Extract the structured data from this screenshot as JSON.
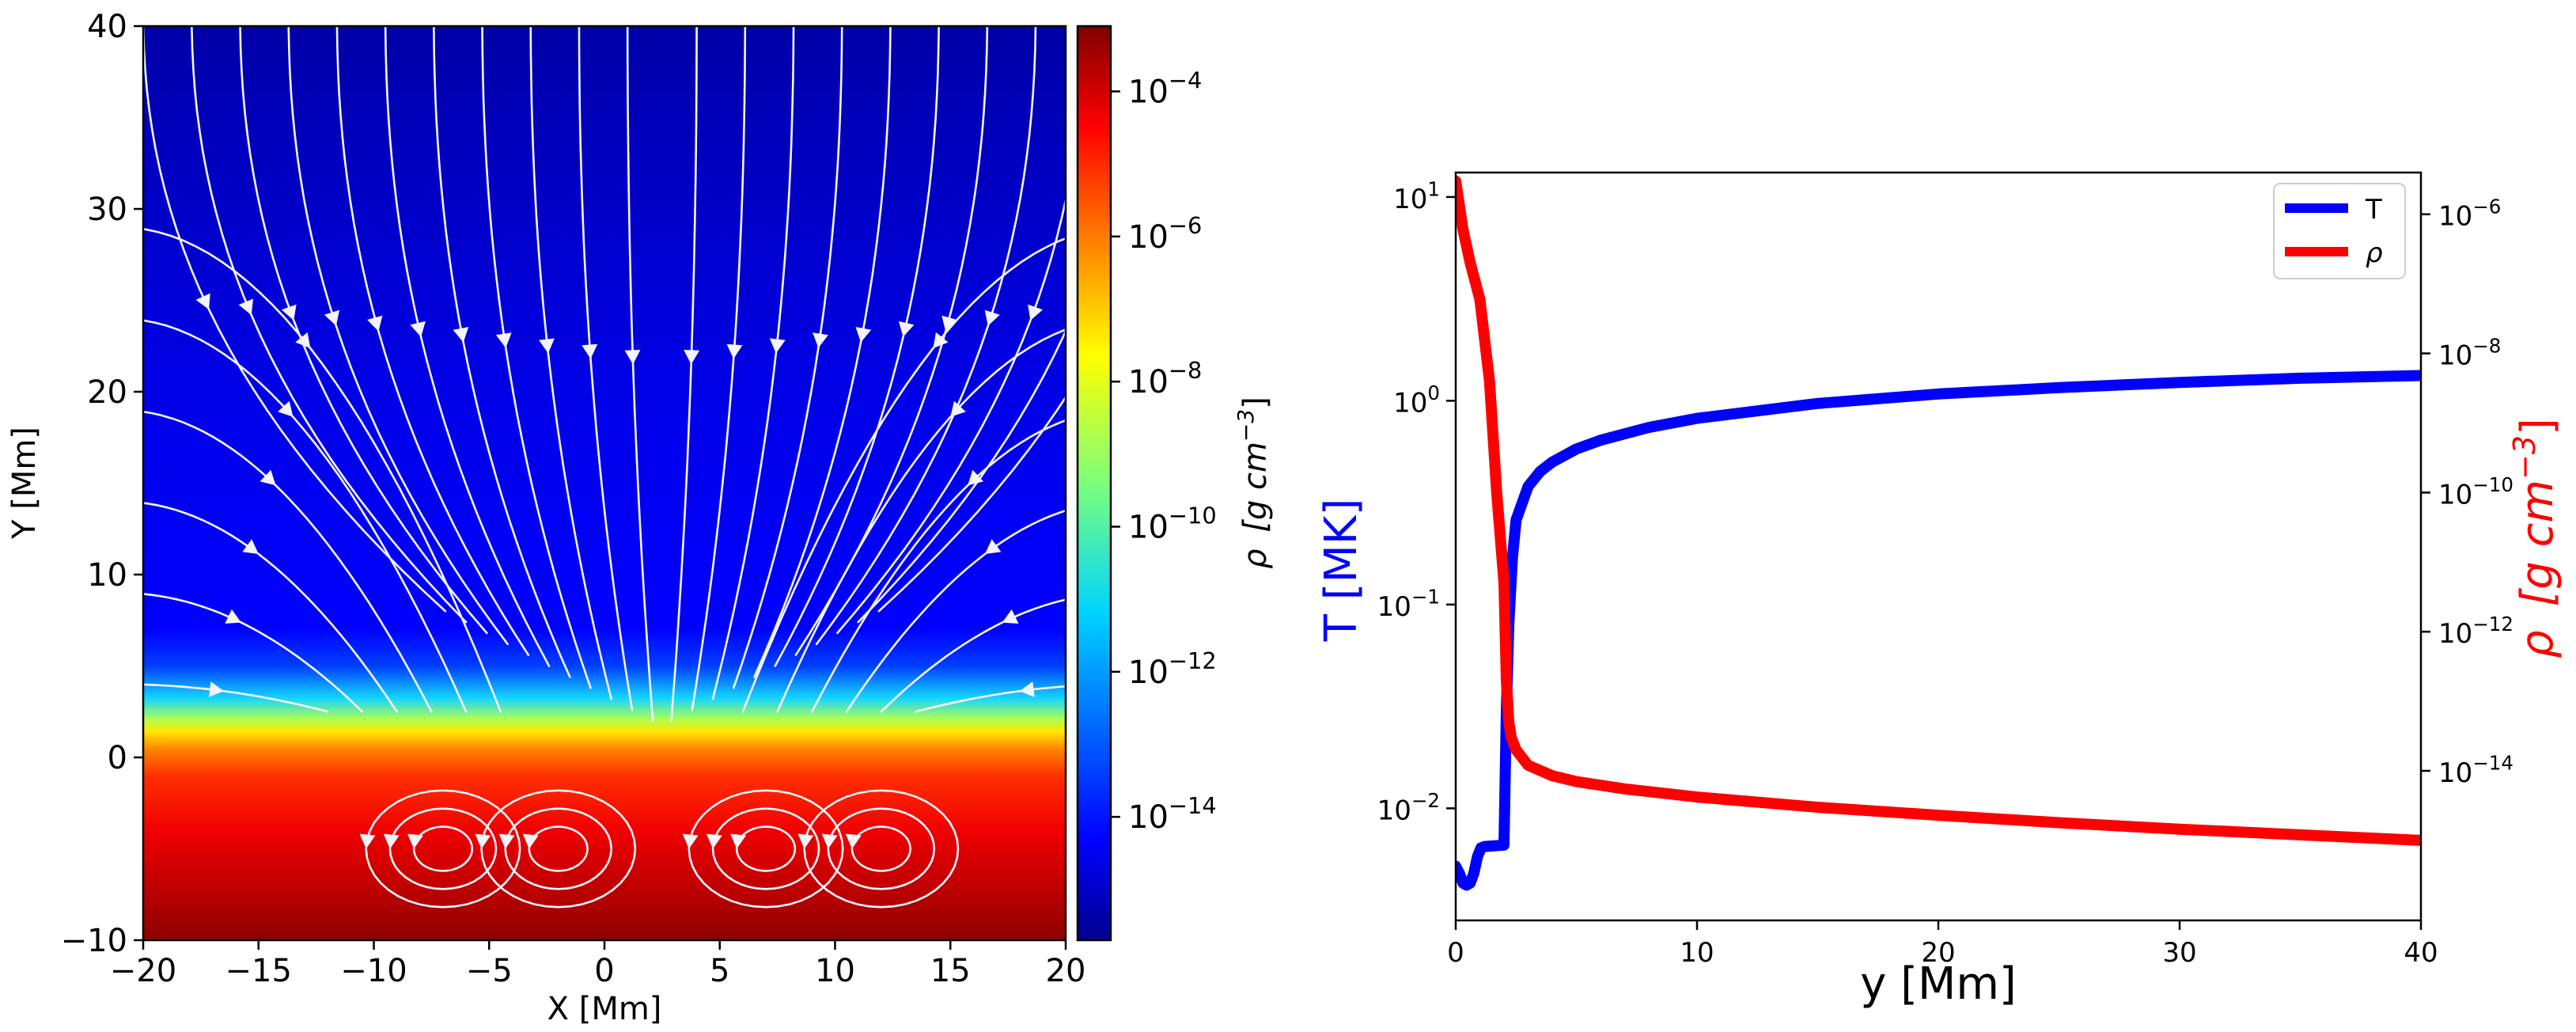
{
  "chart_data": [
    {
      "type": "heatmap",
      "xlabel": "X [Mm]",
      "ylabel": "Y [Mm]",
      "xlim": [
        -20,
        20
      ],
      "ylim": [
        -10,
        40
      ],
      "xticks": [
        -20,
        -15,
        -10,
        -5,
        0,
        5,
        10,
        15,
        20
      ],
      "yticks": [
        -10,
        0,
        10,
        20,
        30,
        40
      ],
      "colorbar": {
        "label_prefix": "ρ",
        "label_unit": "[g cm",
        "label_exp": "−3",
        "label_close": "]",
        "scale": "log",
        "range_log10": [
          -15.7,
          -3.1
        ],
        "ticks": [
          {
            "value": -4,
            "base": "10",
            "exp": "−4"
          },
          {
            "value": -6,
            "base": "10",
            "exp": "−6"
          },
          {
            "value": -8,
            "base": "10",
            "exp": "−8"
          },
          {
            "value": -10,
            "base": "10",
            "exp": "−10"
          },
          {
            "value": -12,
            "base": "10",
            "exp": "−12"
          },
          {
            "value": -14,
            "base": "10",
            "exp": "−14"
          }
        ]
      },
      "density_profile": {
        "y_Mm": [
          -10,
          -7,
          -4,
          -1,
          0.5,
          1.5,
          2.2,
          2.6,
          40
        ],
        "log10_rho": [
          -3.4,
          -4.3,
          -5.2,
          -6.3,
          -7.8,
          -10.5,
          -13.0,
          -14.6,
          -15.3
        ]
      },
      "overlay": "white magnetic field streamlines with arrows; convection cells centered near x = -7, -2, 7, 12 at y = -5"
    },
    {
      "type": "line",
      "xlabel": "y [Mm]",
      "ylabel_left": "T [MK]",
      "ylabel_right_prefix": "ρ",
      "ylabel_right_unit": "[g cm",
      "ylabel_right_exp": "−3",
      "ylabel_right_close": "]",
      "xlim": [
        0,
        40
      ],
      "xticks": [
        0,
        10,
        20,
        30,
        40
      ],
      "ylim_left_log10": [
        -2.55,
        1.12
      ],
      "ylim_right_log10": [
        -16.15,
        -5.4
      ],
      "yticks_left": [
        {
          "value": 1,
          "base": "10",
          "exp": "1"
        },
        {
          "value": 0,
          "base": "10",
          "exp": "0"
        },
        {
          "value": -1,
          "base": "10",
          "exp": "−1"
        },
        {
          "value": -2,
          "base": "10",
          "exp": "−2"
        }
      ],
      "yticks_right": [
        {
          "value": -6,
          "base": "10",
          "exp": "−6"
        },
        {
          "value": -8,
          "base": "10",
          "exp": "−8"
        },
        {
          "value": -10,
          "base": "10",
          "exp": "−10"
        },
        {
          "value": -12,
          "base": "10",
          "exp": "−12"
        },
        {
          "value": -14,
          "base": "10",
          "exp": "−14"
        }
      ],
      "legend": {
        "position": "top-right",
        "entries": [
          "T",
          "ρ"
        ]
      },
      "series": [
        {
          "name": "T",
          "axis": "left",
          "color": "#0000ff",
          "x": [
            0,
            0.15,
            0.3,
            0.45,
            0.6,
            0.75,
            0.9,
            1.05,
            1.2,
            2.0,
            2.1,
            2.2,
            2.35,
            2.5,
            3,
            3.5,
            4,
            5,
            6,
            8,
            10,
            15,
            20,
            25,
            30,
            35,
            40
          ],
          "y": [
            0.0052,
            0.0048,
            0.0043,
            0.0042,
            0.0043,
            0.0048,
            0.0058,
            0.0064,
            0.0065,
            0.0066,
            0.03,
            0.08,
            0.17,
            0.26,
            0.38,
            0.45,
            0.5,
            0.58,
            0.64,
            0.74,
            0.82,
            0.97,
            1.08,
            1.16,
            1.23,
            1.29,
            1.33
          ]
        },
        {
          "name": "ρ",
          "axis": "right",
          "color": "#ff0000",
          "x": [
            0,
            0.3,
            0.6,
            1.0,
            1.4,
            1.7,
            2.0,
            2.1,
            2.2,
            2.3,
            2.5,
            3,
            4,
            5,
            7,
            10,
            15,
            20,
            25,
            30,
            35,
            40
          ],
          "y": [
            3e-06,
            6e-07,
            2e-07,
            6e-08,
            4e-09,
            1e-10,
            5e-12,
            2e-13,
            5e-14,
            3e-14,
            2e-14,
            1.2e-14,
            8.5e-15,
            7e-15,
            5.5e-15,
            4.2e-15,
            3e-15,
            2.3e-15,
            1.8e-15,
            1.45e-15,
            1.2e-15,
            1e-15
          ]
        }
      ]
    }
  ]
}
